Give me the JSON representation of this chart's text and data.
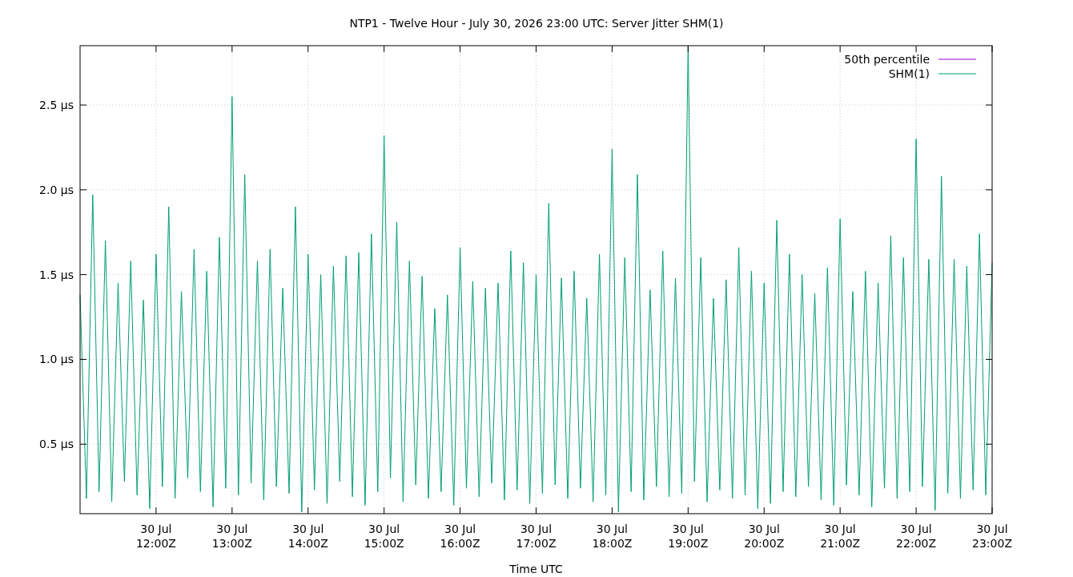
{
  "chart_data": {
    "type": "line",
    "title": "NTP1 - Twelve Hour - July 30, 2026 23:00 UTC: Server Jitter SHM(1)",
    "xlabel": "Time UTC",
    "x": [
      "2026-07-30T11:00",
      "2026-07-30T11:05",
      "2026-07-30T11:10",
      "2026-07-30T11:15",
      "2026-07-30T11:20",
      "2026-07-30T11:25",
      "2026-07-30T11:30",
      "2026-07-30T11:35",
      "2026-07-30T11:40",
      "2026-07-30T11:45",
      "2026-07-30T11:50",
      "2026-07-30T11:55",
      "2026-07-30T12:00",
      "2026-07-30T12:05",
      "2026-07-30T12:10",
      "2026-07-30T12:15",
      "2026-07-30T12:20",
      "2026-07-30T12:25",
      "2026-07-30T12:30",
      "2026-07-30T12:35",
      "2026-07-30T12:40",
      "2026-07-30T12:45",
      "2026-07-30T12:50",
      "2026-07-30T12:55",
      "2026-07-30T13:00",
      "2026-07-30T13:05",
      "2026-07-30T13:10",
      "2026-07-30T13:15",
      "2026-07-30T13:20",
      "2026-07-30T13:25",
      "2026-07-30T13:30",
      "2026-07-30T13:35",
      "2026-07-30T13:40",
      "2026-07-30T13:45",
      "2026-07-30T13:50",
      "2026-07-30T13:55",
      "2026-07-30T14:00",
      "2026-07-30T14:05",
      "2026-07-30T14:10",
      "2026-07-30T14:15",
      "2026-07-30T14:20",
      "2026-07-30T14:25",
      "2026-07-30T14:30",
      "2026-07-30T14:35",
      "2026-07-30T14:40",
      "2026-07-30T14:45",
      "2026-07-30T14:50",
      "2026-07-30T14:55",
      "2026-07-30T15:00",
      "2026-07-30T15:05",
      "2026-07-30T15:10",
      "2026-07-30T15:15",
      "2026-07-30T15:20",
      "2026-07-30T15:25",
      "2026-07-30T15:30",
      "2026-07-30T15:35",
      "2026-07-30T15:40",
      "2026-07-30T15:45",
      "2026-07-30T15:50",
      "2026-07-30T15:55",
      "2026-07-30T16:00",
      "2026-07-30T16:05",
      "2026-07-30T16:10",
      "2026-07-30T16:15",
      "2026-07-30T16:20",
      "2026-07-30T16:25",
      "2026-07-30T16:30",
      "2026-07-30T16:35",
      "2026-07-30T16:40",
      "2026-07-30T16:45",
      "2026-07-30T16:50",
      "2026-07-30T16:55",
      "2026-07-30T17:00",
      "2026-07-30T17:05",
      "2026-07-30T17:10",
      "2026-07-30T17:15",
      "2026-07-30T17:20",
      "2026-07-30T17:25",
      "2026-07-30T17:30",
      "2026-07-30T17:35",
      "2026-07-30T17:40",
      "2026-07-30T17:45",
      "2026-07-30T17:50",
      "2026-07-30T17:55",
      "2026-07-30T18:00",
      "2026-07-30T18:05",
      "2026-07-30T18:10",
      "2026-07-30T18:15",
      "2026-07-30T18:20",
      "2026-07-30T18:25",
      "2026-07-30T18:30",
      "2026-07-30T18:35",
      "2026-07-30T18:40",
      "2026-07-30T18:45",
      "2026-07-30T18:50",
      "2026-07-30T18:55",
      "2026-07-30T19:00",
      "2026-07-30T19:05",
      "2026-07-30T19:10",
      "2026-07-30T19:15",
      "2026-07-30T19:20",
      "2026-07-30T19:25",
      "2026-07-30T19:30",
      "2026-07-30T19:35",
      "2026-07-30T19:40",
      "2026-07-30T19:45",
      "2026-07-30T19:50",
      "2026-07-30T19:55",
      "2026-07-30T20:00",
      "2026-07-30T20:05",
      "2026-07-30T20:10",
      "2026-07-30T20:15",
      "2026-07-30T20:20",
      "2026-07-30T20:25",
      "2026-07-30T20:30",
      "2026-07-30T20:35",
      "2026-07-30T20:40",
      "2026-07-30T20:45",
      "2026-07-30T20:50",
      "2026-07-30T20:55",
      "2026-07-30T21:00",
      "2026-07-30T21:05",
      "2026-07-30T21:10",
      "2026-07-30T21:15",
      "2026-07-30T21:20",
      "2026-07-30T21:25",
      "2026-07-30T21:30",
      "2026-07-30T21:35",
      "2026-07-30T21:40",
      "2026-07-30T21:45",
      "2026-07-30T21:50",
      "2026-07-30T21:55",
      "2026-07-30T22:00",
      "2026-07-30T22:05",
      "2026-07-30T22:10",
      "2026-07-30T22:15",
      "2026-07-30T22:20",
      "2026-07-30T22:25",
      "2026-07-30T22:30",
      "2026-07-30T22:35",
      "2026-07-30T22:40",
      "2026-07-30T22:45",
      "2026-07-30T22:50",
      "2026-07-30T22:55",
      "2026-07-30T23:00"
    ],
    "series": [
      {
        "name": "50th percentile",
        "color": "#9400d3",
        "values": [
          null,
          null,
          null,
          null,
          null,
          null,
          null,
          null,
          null,
          null,
          null,
          null,
          null,
          null,
          null,
          null,
          null,
          null,
          null,
          null,
          null,
          null,
          null,
          null,
          null,
          null,
          null,
          null,
          null,
          null,
          null,
          null,
          null,
          null,
          null,
          null,
          null,
          null,
          null,
          null,
          null,
          null,
          null,
          null,
          null,
          null,
          null,
          null,
          null,
          null,
          null,
          null,
          null,
          null,
          null,
          null,
          null,
          null,
          null,
          null,
          null,
          null,
          null,
          null,
          null,
          null,
          null,
          null,
          null,
          null,
          null,
          null,
          null,
          null,
          null,
          null,
          null,
          null,
          null,
          null,
          null,
          null,
          null,
          null,
          null,
          null,
          null,
          null,
          null,
          null,
          null,
          null,
          null,
          null,
          null,
          null,
          null,
          null,
          null,
          null,
          null,
          null,
          null,
          null,
          null,
          null,
          null,
          null,
          null,
          null,
          null,
          null,
          null,
          null,
          null,
          null,
          null,
          null,
          null,
          null,
          null,
          null,
          null,
          null,
          null,
          null,
          null,
          null,
          null,
          null,
          null,
          null,
          null,
          null,
          null,
          null,
          null,
          null,
          null,
          null,
          null,
          null,
          null,
          null,
          null
        ]
      },
      {
        "name": "SHM(1)",
        "color": "#009e73",
        "values": [
          1.38,
          0.18,
          1.97,
          0.22,
          1.7,
          0.16,
          1.45,
          0.28,
          1.58,
          0.2,
          1.35,
          0.12,
          1.62,
          0.25,
          1.9,
          0.18,
          1.4,
          0.3,
          1.65,
          0.22,
          1.52,
          0.13,
          1.72,
          0.24,
          2.55,
          0.2,
          2.09,
          0.27,
          1.58,
          0.17,
          1.65,
          0.25,
          1.42,
          0.21,
          1.9,
          0.1,
          1.62,
          0.23,
          1.5,
          0.15,
          1.55,
          0.28,
          1.61,
          0.19,
          1.63,
          0.14,
          1.74,
          0.22,
          2.32,
          0.3,
          1.81,
          0.16,
          1.58,
          0.26,
          1.49,
          0.18,
          1.3,
          0.22,
          1.38,
          0.14,
          1.66,
          0.24,
          1.46,
          0.19,
          1.42,
          0.27,
          1.45,
          0.17,
          1.64,
          0.23,
          1.57,
          0.15,
          1.5,
          0.21,
          1.92,
          0.26,
          1.48,
          0.18,
          1.52,
          0.24,
          1.36,
          0.16,
          1.62,
          0.2,
          2.24,
          0.1,
          1.6,
          0.22,
          2.09,
          0.17,
          1.41,
          0.25,
          1.64,
          0.19,
          1.48,
          0.21,
          2.85,
          0.28,
          1.6,
          0.16,
          1.36,
          0.23,
          1.47,
          0.18,
          1.66,
          0.2,
          1.52,
          0.12,
          1.45,
          0.15,
          1.82,
          0.22,
          1.62,
          0.19,
          1.5,
          0.25,
          1.39,
          0.17,
          1.54,
          0.14,
          1.83,
          0.26,
          1.4,
          0.2,
          1.52,
          0.13,
          1.45,
          0.24,
          1.73,
          0.18,
          1.6,
          0.22,
          2.3,
          0.25,
          1.59,
          0.11,
          2.08,
          0.21,
          1.59,
          0.18,
          1.55,
          0.23,
          1.74,
          0.2,
          1.57
        ]
      }
    ],
    "xlim": [
      "2026-07-30T11:00",
      "2026-07-30T23:00"
    ],
    "xticks": [
      {
        "value": "2026-07-30T12:00",
        "label": "30 Jul\n12:00Z"
      },
      {
        "value": "2026-07-30T13:00",
        "label": "30 Jul\n13:00Z"
      },
      {
        "value": "2026-07-30T14:00",
        "label": "30 Jul\n14:00Z"
      },
      {
        "value": "2026-07-30T15:00",
        "label": "30 Jul\n15:00Z"
      },
      {
        "value": "2026-07-30T16:00",
        "label": "30 Jul\n16:00Z"
      },
      {
        "value": "2026-07-30T17:00",
        "label": "30 Jul\n17:00Z"
      },
      {
        "value": "2026-07-30T18:00",
        "label": "30 Jul\n18:00Z"
      },
      {
        "value": "2026-07-30T19:00",
        "label": "30 Jul\n19:00Z"
      },
      {
        "value": "2026-07-30T20:00",
        "label": "30 Jul\n20:00Z"
      },
      {
        "value": "2026-07-30T21:00",
        "label": "30 Jul\n21:00Z"
      },
      {
        "value": "2026-07-30T22:00",
        "label": "30 Jul\n22:00Z"
      },
      {
        "value": "2026-07-30T23:00",
        "label": "30 Jul\n23:00Z"
      }
    ],
    "ylim": [
      0.09,
      2.85
    ],
    "yticks": [
      {
        "value": 0.5,
        "label": "0.5 µs"
      },
      {
        "value": 1.0,
        "label": "1.0 µs"
      },
      {
        "value": 1.5,
        "label": "1.5 µs"
      },
      {
        "value": 2.0,
        "label": "2.0 µs"
      },
      {
        "value": 2.5,
        "label": "2.5 µs"
      }
    ],
    "grid": true,
    "legend": "top right",
    "line_style": "solid",
    "marker": "none"
  }
}
